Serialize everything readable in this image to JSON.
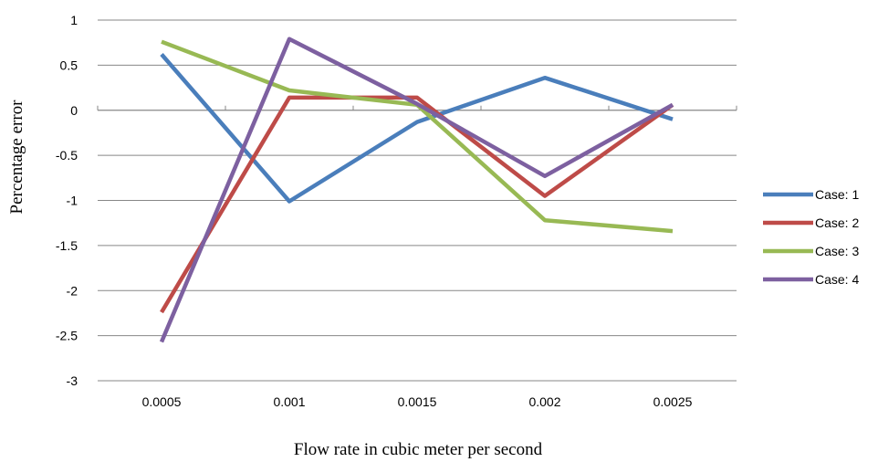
{
  "chart_data": {
    "type": "line",
    "title": "",
    "xlabel": "Flow rate in cubic meter per second",
    "ylabel": "Percentage error",
    "categories": [
      "0.0005",
      "0.001",
      "0.0015",
      "0.002",
      "0.0025"
    ],
    "ylim": [
      -3,
      1
    ],
    "yticks": [
      "1",
      "0.5",
      "0",
      "-0.5",
      "-1",
      "-1.5",
      "-2",
      "-2.5",
      "-3"
    ],
    "ytick_values": [
      1,
      0.5,
      0,
      -0.5,
      -1,
      -1.5,
      -2,
      -2.5,
      -3
    ],
    "grid": "horizontal",
    "legend_position": "right",
    "series": [
      {
        "name": "Case: 1",
        "color": "#4a7ebb",
        "values": [
          0.62,
          -1.01,
          -0.13,
          0.36,
          -0.1
        ]
      },
      {
        "name": "Case: 2",
        "color": "#be4b48",
        "values": [
          -2.24,
          0.14,
          0.14,
          -0.95,
          0.06
        ]
      },
      {
        "name": "Case: 3",
        "color": "#98b954",
        "values": [
          0.76,
          0.22,
          0.06,
          -1.22,
          -1.34
        ]
      },
      {
        "name": "Case: 4",
        "color": "#7d60a0",
        "values": [
          -2.57,
          0.79,
          0.07,
          -0.73,
          0.06
        ]
      }
    ]
  }
}
